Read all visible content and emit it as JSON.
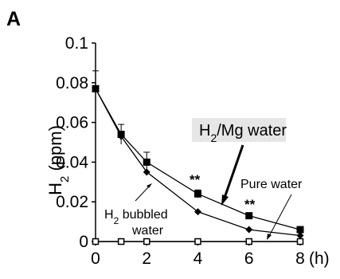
{
  "chart_data": {
    "type": "line",
    "panel_label": "A",
    "ylabel": "H",
    "ylabel_sub": "2",
    "ylabel_unit": " (ppm)",
    "x_unit": "(h)",
    "x": [
      0,
      1,
      2,
      4,
      6,
      8
    ],
    "xticks": [
      0,
      2,
      4,
      6,
      8
    ],
    "yticks": [
      "0",
      "0.02",
      "0.04",
      "0.06",
      "0.08",
      "0.1"
    ],
    "ylim": [
      0,
      0.1
    ],
    "xlim": [
      0,
      8
    ],
    "series": [
      {
        "name": "H2/Mg water",
        "marker": "square-filled",
        "values": [
          0.077,
          0.054,
          0.04,
          0.024,
          0.013,
          0.006
        ],
        "errors": [
          0.009,
          0.005,
          0.005,
          0.002,
          0.001,
          0.001
        ]
      },
      {
        "name": "H2 bubbled water",
        "marker": "diamond-filled",
        "values": [
          0.077,
          0.053,
          0.035,
          0.015,
          0.006,
          0.003
        ],
        "errors": [
          0,
          0,
          0,
          0,
          0,
          0
        ]
      },
      {
        "name": "Pure water",
        "marker": "square-open",
        "values": [
          0,
          0,
          0,
          0,
          0,
          0
        ],
        "errors": [
          0,
          0,
          0,
          0,
          0,
          0
        ]
      }
    ],
    "annotations": {
      "mg_label_main": "H",
      "mg_label_sub": "2",
      "mg_label_rest": "/Mg water",
      "bubbled_main": "H",
      "bubbled_sub": "2",
      "bubbled_rest": " bubbled",
      "bubbled_line2": "water",
      "pure_label": "Pure water",
      "sig_4": "**",
      "sig_6": "**"
    },
    "colors": {
      "line": "#000000",
      "label_box": "#e6e6e6"
    }
  }
}
